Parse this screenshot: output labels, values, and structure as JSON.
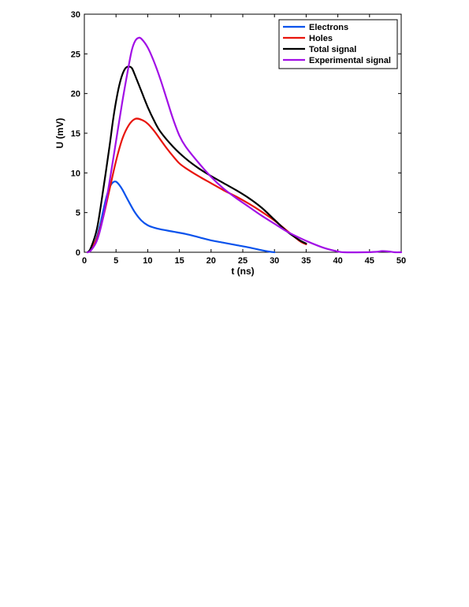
{
  "chart_data": {
    "type": "line",
    "xlabel": "t (ns)",
    "ylabel": "U (mV)",
    "xlim": [
      0,
      50
    ],
    "ylim": [
      0,
      30
    ],
    "xticks": [
      0,
      5,
      10,
      15,
      20,
      25,
      30,
      35,
      40,
      45,
      50
    ],
    "yticks": [
      0,
      5,
      10,
      15,
      20,
      25,
      30
    ],
    "grid": false,
    "legend_position": "top-right",
    "series": [
      {
        "name": "Electrons",
        "color": "#0a52ec",
        "points": [
          [
            0.5,
            0
          ],
          [
            1,
            0.3
          ],
          [
            1.5,
            0.9
          ],
          [
            2,
            2
          ],
          [
            2.5,
            3.5
          ],
          [
            3,
            5.3
          ],
          [
            3.5,
            7
          ],
          [
            4,
            8.2
          ],
          [
            4.5,
            8.8
          ],
          [
            5,
            8.9
          ],
          [
            5.5,
            8.5
          ],
          [
            6,
            7.9
          ],
          [
            7,
            6.4
          ],
          [
            8,
            5
          ],
          [
            9,
            4
          ],
          [
            10,
            3.4
          ],
          [
            11,
            3.1
          ],
          [
            12,
            2.9
          ],
          [
            14,
            2.6
          ],
          [
            16,
            2.3
          ],
          [
            18,
            1.9
          ],
          [
            20,
            1.5
          ],
          [
            22,
            1.2
          ],
          [
            24,
            0.9
          ],
          [
            26,
            0.6
          ],
          [
            28,
            0.25
          ],
          [
            29,
            0.1
          ],
          [
            30,
            0
          ]
        ]
      },
      {
        "name": "Holes",
        "color": "#e8140c",
        "points": [
          [
            0.5,
            0
          ],
          [
            1,
            0.3
          ],
          [
            2,
            1.8
          ],
          [
            3,
            4.5
          ],
          [
            4,
            8
          ],
          [
            5,
            11.5
          ],
          [
            6,
            14.3
          ],
          [
            7,
            16
          ],
          [
            8,
            16.8
          ],
          [
            9,
            16.7
          ],
          [
            10,
            16.2
          ],
          [
            11,
            15.3
          ],
          [
            12,
            14.2
          ],
          [
            13,
            13.1
          ],
          [
            14,
            12.1
          ],
          [
            15,
            11.2
          ],
          [
            16,
            10.6
          ],
          [
            18,
            9.6
          ],
          [
            20,
            8.7
          ],
          [
            22,
            7.8
          ],
          [
            24,
            7
          ],
          [
            26,
            6.1
          ],
          [
            28,
            5.1
          ],
          [
            30,
            4
          ],
          [
            32,
            2.7
          ],
          [
            34,
            1.4
          ],
          [
            35,
            1
          ]
        ]
      },
      {
        "name": "Total signal",
        "color": "#000000",
        "points": [
          [
            0.5,
            0
          ],
          [
            1,
            0.5
          ],
          [
            2,
            3
          ],
          [
            3,
            8
          ],
          [
            4,
            13.5
          ],
          [
            4.5,
            16.5
          ],
          [
            5,
            19
          ],
          [
            5.5,
            21
          ],
          [
            6,
            22.4
          ],
          [
            6.5,
            23.2
          ],
          [
            7,
            23.4
          ],
          [
            7.5,
            23.2
          ],
          [
            8,
            22.3
          ],
          [
            9,
            20.3
          ],
          [
            10,
            18.3
          ],
          [
            11,
            16.6
          ],
          [
            12,
            15.2
          ],
          [
            14,
            13.3
          ],
          [
            16,
            11.8
          ],
          [
            18,
            10.6
          ],
          [
            20,
            9.6
          ],
          [
            22,
            8.7
          ],
          [
            24,
            7.8
          ],
          [
            26,
            6.8
          ],
          [
            28,
            5.6
          ],
          [
            30,
            4.1
          ],
          [
            32,
            2.6
          ],
          [
            34,
            1.5
          ],
          [
            35,
            1.1
          ]
        ]
      },
      {
        "name": "Experimental signal",
        "color": "#a20fe6",
        "points": [
          [
            0.5,
            0
          ],
          [
            1,
            0.2
          ],
          [
            2,
            1.5
          ],
          [
            3,
            4.5
          ],
          [
            4,
            9
          ],
          [
            5,
            14
          ],
          [
            6,
            19
          ],
          [
            7,
            23.5
          ],
          [
            7.5,
            25.5
          ],
          [
            8,
            26.6
          ],
          [
            8.5,
            27
          ],
          [
            9,
            26.9
          ],
          [
            10,
            25.8
          ],
          [
            11,
            24
          ],
          [
            12,
            21.8
          ],
          [
            13,
            19.3
          ],
          [
            14,
            16.8
          ],
          [
            15,
            14.7
          ],
          [
            16,
            13.3
          ],
          [
            18,
            11.3
          ],
          [
            20,
            9.5
          ],
          [
            22,
            8
          ],
          [
            24,
            6.8
          ],
          [
            26,
            5.7
          ],
          [
            28,
            4.6
          ],
          [
            30,
            3.6
          ],
          [
            32,
            2.6
          ],
          [
            34,
            1.8
          ],
          [
            36,
            1.1
          ],
          [
            38,
            0.5
          ],
          [
            40,
            0.1
          ],
          [
            41,
            0
          ],
          [
            44,
            0
          ],
          [
            46,
            0.05
          ],
          [
            47,
            0.15
          ],
          [
            48,
            0.1
          ],
          [
            49,
            0
          ],
          [
            50,
            0
          ]
        ]
      }
    ]
  }
}
